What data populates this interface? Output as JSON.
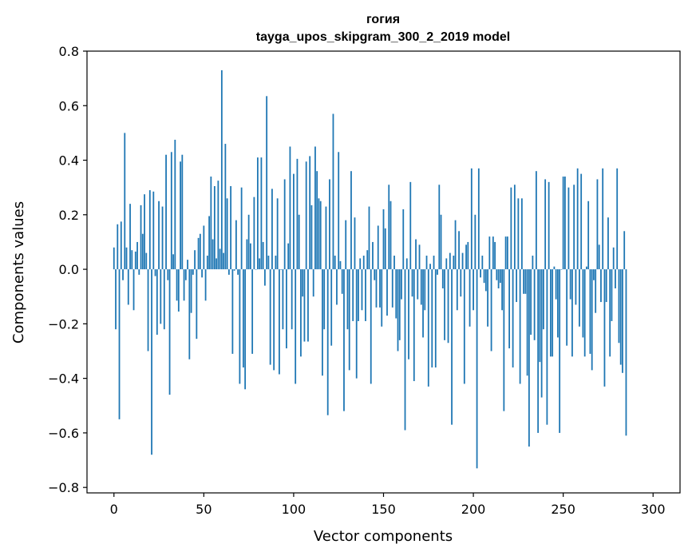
{
  "chart_data": {
    "type": "bar",
    "title_lines": [
      "гогия",
      "tayga_upos_skipgram_300_2_2019 model"
    ],
    "xlabel": "Vector components",
    "ylabel": "Components values",
    "xlim": [
      -15,
      315
    ],
    "ylim": [
      -0.82,
      0.8
    ],
    "xticks": [
      0,
      50,
      100,
      150,
      200,
      250,
      300
    ],
    "yticks": [
      -0.8,
      -0.6,
      -0.4,
      -0.2,
      0.0,
      0.2,
      0.4,
      0.6,
      0.8
    ],
    "ytick_labels": [
      "−0.8",
      "−0.6",
      "−0.4",
      "−0.2",
      "0.0",
      "0.2",
      "0.4",
      "0.6",
      "0.8"
    ],
    "bar_color": "#1f77b4",
    "values": [
      0.08,
      -0.22,
      0.165,
      -0.55,
      0.175,
      -0.04,
      0.5,
      0.08,
      -0.13,
      0.24,
      0.07,
      -0.15,
      0.065,
      0.1,
      -0.02,
      0.235,
      0.13,
      0.275,
      0.06,
      -0.3,
      0.29,
      -0.68,
      0.285,
      -0.025,
      -0.24,
      0.25,
      -0.2,
      0.23,
      -0.22,
      0.42,
      -0.04,
      -0.46,
      0.43,
      0.055,
      0.475,
      -0.115,
      -0.155,
      0.395,
      0.42,
      -0.115,
      -0.04,
      0.035,
      -0.33,
      -0.16,
      -0.02,
      0.07,
      -0.255,
      0.115,
      0.13,
      -0.03,
      0.16,
      -0.115,
      0.05,
      0.195,
      0.34,
      0.11,
      0.305,
      0.04,
      0.325,
      0.075,
      0.73,
      0.06,
      0.46,
      0.26,
      -0.02,
      0.305,
      -0.31,
      -0.005,
      0.18,
      -0.02,
      -0.42,
      0.3,
      -0.36,
      -0.44,
      0.11,
      0.2,
      0.095,
      -0.31,
      0.265,
      0.0,
      0.41,
      0.04,
      0.41,
      0.1,
      -0.06,
      0.635,
      0.05,
      -0.35,
      0.295,
      -0.37,
      0.05,
      0.26,
      -0.385,
      0.0,
      -0.22,
      0.33,
      -0.29,
      0.095,
      0.45,
      -0.22,
      0.35,
      -0.42,
      0.405,
      0.2,
      -0.32,
      -0.1,
      -0.265,
      0.395,
      -0.265,
      0.415,
      0.235,
      -0.1,
      0.45,
      0.36,
      0.26,
      0.25,
      -0.39,
      -0.22,
      0.23,
      -0.535,
      0.33,
      -0.28,
      0.57,
      0.05,
      -0.13,
      0.43,
      0.03,
      -0.09,
      -0.52,
      0.18,
      -0.22,
      -0.37,
      0.36,
      -0.19,
      0.19,
      -0.4,
      -0.19,
      0.04,
      -0.15,
      0.05,
      -0.19,
      0.07,
      0.23,
      -0.42,
      0.1,
      -0.04,
      -0.14,
      0.16,
      -0.14,
      -0.21,
      0.22,
      0.15,
      -0.17,
      0.31,
      0.25,
      -0.14,
      0.05,
      -0.18,
      -0.3,
      -0.26,
      -0.11,
      0.22,
      -0.59,
      0.04,
      -0.33,
      0.32,
      -0.1,
      -0.41,
      0.11,
      -0.11,
      0.09,
      -0.13,
      -0.25,
      -0.15,
      0.05,
      -0.43,
      0.02,
      -0.36,
      0.05,
      -0.36,
      -0.02,
      0.31,
      0.2,
      -0.07,
      -0.26,
      0.04,
      -0.27,
      0.06,
      -0.57,
      0.05,
      0.18,
      -0.15,
      0.14,
      -0.1,
      0.06,
      -0.42,
      0.09,
      0.1,
      -0.21,
      0.37,
      -0.15,
      0.2,
      -0.73,
      0.37,
      -0.03,
      0.05,
      -0.05,
      -0.08,
      -0.21,
      0.12,
      -0.3,
      0.12,
      0.1,
      -0.04,
      -0.07,
      -0.05,
      -0.15,
      -0.52,
      0.12,
      0.12,
      -0.29,
      0.3,
      -0.36,
      0.31,
      -0.12,
      0.26,
      -0.42,
      0.26,
      -0.09,
      -0.09,
      -0.39,
      -0.65,
      -0.24,
      0.05,
      -0.26,
      0.36,
      -0.6,
      -0.34,
      -0.47,
      -0.22,
      0.33,
      -0.57,
      0.32,
      -0.32,
      -0.32,
      0.01,
      -0.11,
      -0.25,
      -0.6,
      0.0,
      0.34,
      0.34,
      -0.28,
      0.3,
      -0.11,
      -0.32,
      0.31,
      -0.13,
      0.37,
      -0.21,
      0.35,
      -0.25,
      -0.32,
      0.01,
      0.25,
      -0.31,
      -0.37,
      -0.04,
      -0.16,
      0.33,
      0.09,
      -0.12,
      0.37,
      -0.43,
      -0.12,
      0.19,
      -0.32,
      -0.19,
      0.08,
      -0.07,
      0.37,
      -0.27,
      -0.35,
      -0.38,
      0.14,
      -0.61
    ]
  }
}
